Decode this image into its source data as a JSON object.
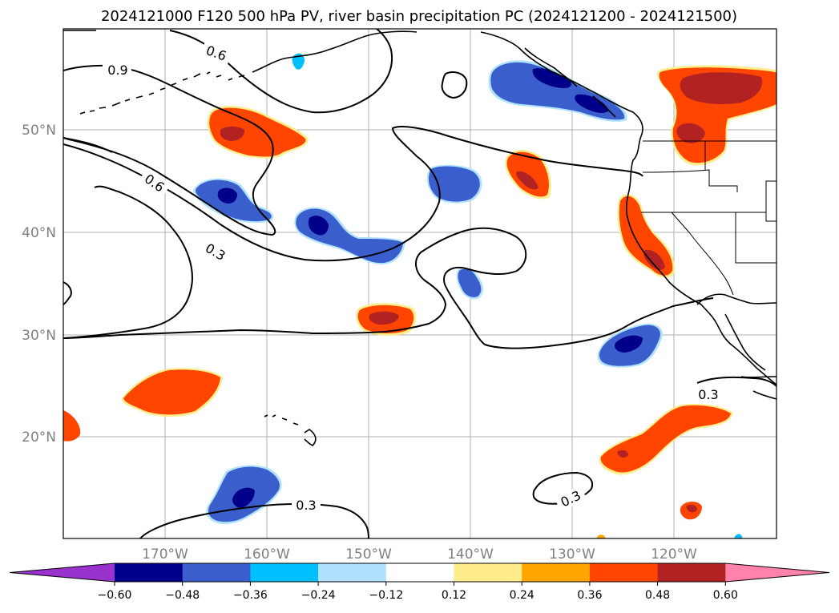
{
  "title": "2024121000 F120 500 hPa PV, river basin precipitation PC (2024121200 - 2024121500)",
  "map": {
    "lat_labels": [
      "50°N",
      "40°N",
      "30°N",
      "20°N"
    ],
    "lon_labels": [
      "170°W",
      "160°W",
      "150°W",
      "140°W",
      "130°W",
      "120°W"
    ],
    "contour_labels": [
      "0.9",
      "0.6",
      "0.6",
      "0.3",
      "0.3",
      "0.3",
      "0.3"
    ],
    "colors": {
      "grid": "#b0b0b0",
      "deep_neg": "#00008b",
      "neg_strong": "#3a5fcd",
      "neg_mid": "#00bfff",
      "neg_weak": "#b0e2ff",
      "pos_weak": "#ffec8b",
      "pos_mid": "#ffa500",
      "pos_strong": "#ff4500",
      "deep_pos": "#b22222",
      "extreme_pos": "#ff82ab",
      "extreme_neg": "#9932cc"
    }
  },
  "colorbar": {
    "ticks": [
      "−0.60",
      "−0.48",
      "−0.36",
      "−0.24",
      "−0.12",
      "0.12",
      "0.24",
      "0.36",
      "0.48",
      "0.60"
    ],
    "colors": [
      "#9932cc",
      "#00008b",
      "#3a5fcd",
      "#00bfff",
      "#b0e2ff",
      "#ffffff",
      "#ffec8b",
      "#ffa500",
      "#ff4500",
      "#b22222",
      "#ff82ab"
    ]
  }
}
